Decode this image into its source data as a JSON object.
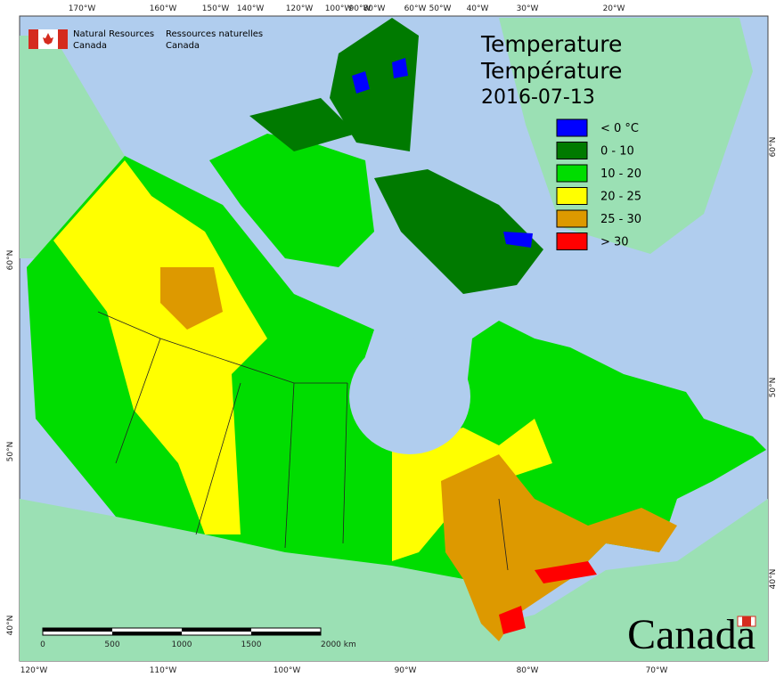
{
  "agency": {
    "en": [
      "Natural Resources",
      "Canada"
    ],
    "fr": [
      "Ressources naturelles",
      "Canada"
    ]
  },
  "title": {
    "line1": "Temperature",
    "line2": "Température",
    "date": "2016-07-13"
  },
  "legend": [
    {
      "label": "< 0 °C",
      "color": "#0000ff"
    },
    {
      "label": "0 - 10",
      "color": "#007a00"
    },
    {
      "label": "10 - 20",
      "color": "#00dd00"
    },
    {
      "label": "20 - 25",
      "color": "#ffff00"
    },
    {
      "label": "25 - 30",
      "color": "#dd9900"
    },
    {
      "label": "> 30",
      "color": "#ff0000"
    }
  ],
  "graticule": {
    "top": [
      "170°W",
      "160°W",
      "150°W",
      "140°W",
      "120°W",
      "100°W",
      "90°W",
      "80°W",
      "60°W",
      "50°W",
      "40°W",
      "30°W",
      "20°W"
    ],
    "bottom": [
      "120°W",
      "110°W",
      "100°W",
      "90°W",
      "80°W",
      "70°W"
    ],
    "left": [
      "60°N",
      "50°N",
      "40°N"
    ],
    "right": [
      "60°N",
      "50°N",
      "40°N"
    ]
  },
  "scale_bar": [
    "0",
    "500",
    "1000",
    "1500",
    "2000  km"
  ],
  "wordmark": "Canada"
}
